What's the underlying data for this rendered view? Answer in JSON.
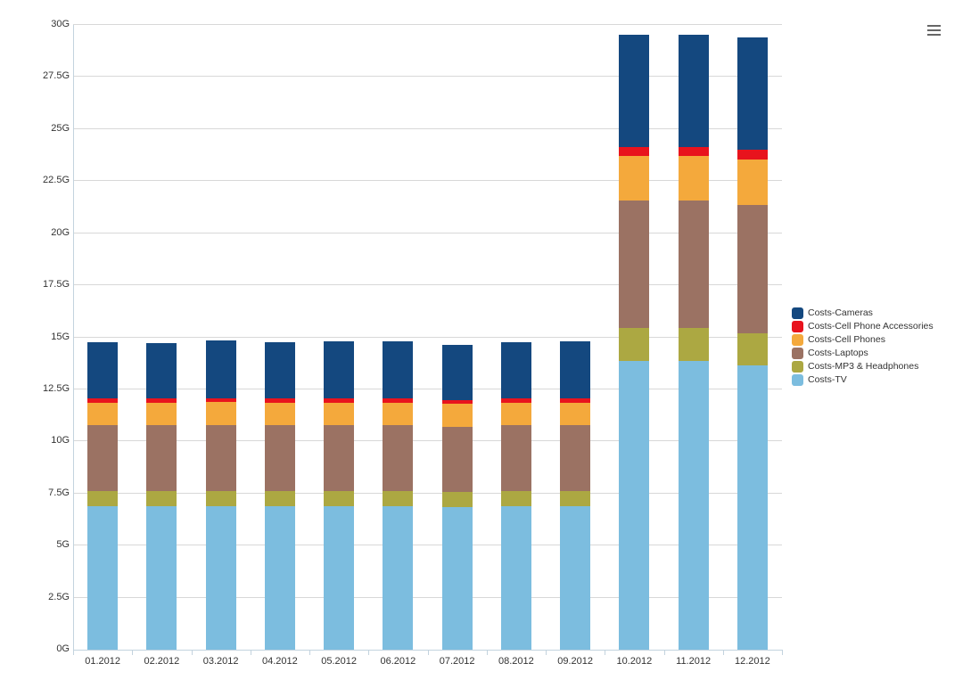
{
  "chart_data": {
    "type": "bar",
    "stacked": true,
    "title": "",
    "xlabel": "",
    "ylabel": "",
    "categories": [
      "01.2012",
      "02.2012",
      "03.2012",
      "04.2012",
      "05.2012",
      "06.2012",
      "07.2012",
      "08.2012",
      "09.2012",
      "10.2012",
      "11.2012",
      "12.2012"
    ],
    "series": [
      {
        "name": "Costs-TV",
        "color": "#7cbddf",
        "values": [
          6.9,
          6.9,
          6.9,
          6.9,
          6.9,
          6.9,
          6.85,
          6.9,
          6.9,
          13.85,
          13.85,
          13.65
        ]
      },
      {
        "name": "Costs-MP3 & Headphones",
        "color": "#aca842",
        "values": [
          0.72,
          0.72,
          0.73,
          0.72,
          0.72,
          0.72,
          0.72,
          0.72,
          0.72,
          1.6,
          1.6,
          1.55
        ]
      },
      {
        "name": "Costs-Laptops",
        "color": "#9b7263",
        "values": [
          3.15,
          3.15,
          3.15,
          3.15,
          3.17,
          3.15,
          3.15,
          3.15,
          3.15,
          6.1,
          6.1,
          6.15
        ]
      },
      {
        "name": "Costs-Cell Phones",
        "color": "#f4a93c",
        "values": [
          1.08,
          1.08,
          1.1,
          1.08,
          1.08,
          1.1,
          1.08,
          1.08,
          1.1,
          2.15,
          2.15,
          2.2
        ]
      },
      {
        "name": "Costs-Cell Phone Accessories",
        "color": "#e8131d",
        "values": [
          0.2,
          0.2,
          0.2,
          0.2,
          0.2,
          0.2,
          0.2,
          0.2,
          0.2,
          0.45,
          0.45,
          0.45
        ]
      },
      {
        "name": "Costs-Cameras",
        "color": "#14487f",
        "values": [
          2.7,
          2.67,
          2.75,
          2.7,
          2.72,
          2.73,
          2.65,
          2.72,
          2.73,
          5.4,
          5.4,
          5.4
        ]
      }
    ],
    "yAxis": {
      "min": 0,
      "max": 30,
      "tick_interval": 2.5,
      "unit": "G",
      "tick_labels": [
        "0G",
        "2.5G",
        "5G",
        "7.5G",
        "10G",
        "12.5G",
        "15G",
        "17.5G",
        "20G",
        "22.5G",
        "25G",
        "27.5G",
        "30G"
      ]
    },
    "grid": true,
    "legend": {
      "position": "right",
      "items": [
        "Costs-Cameras",
        "Costs-Cell Phone Accessories",
        "Costs-Cell Phones",
        "Costs-Laptops",
        "Costs-MP3 & Headphones",
        "Costs-TV"
      ]
    }
  },
  "toolbar": {
    "menu_icon": "hamburger-menu"
  }
}
